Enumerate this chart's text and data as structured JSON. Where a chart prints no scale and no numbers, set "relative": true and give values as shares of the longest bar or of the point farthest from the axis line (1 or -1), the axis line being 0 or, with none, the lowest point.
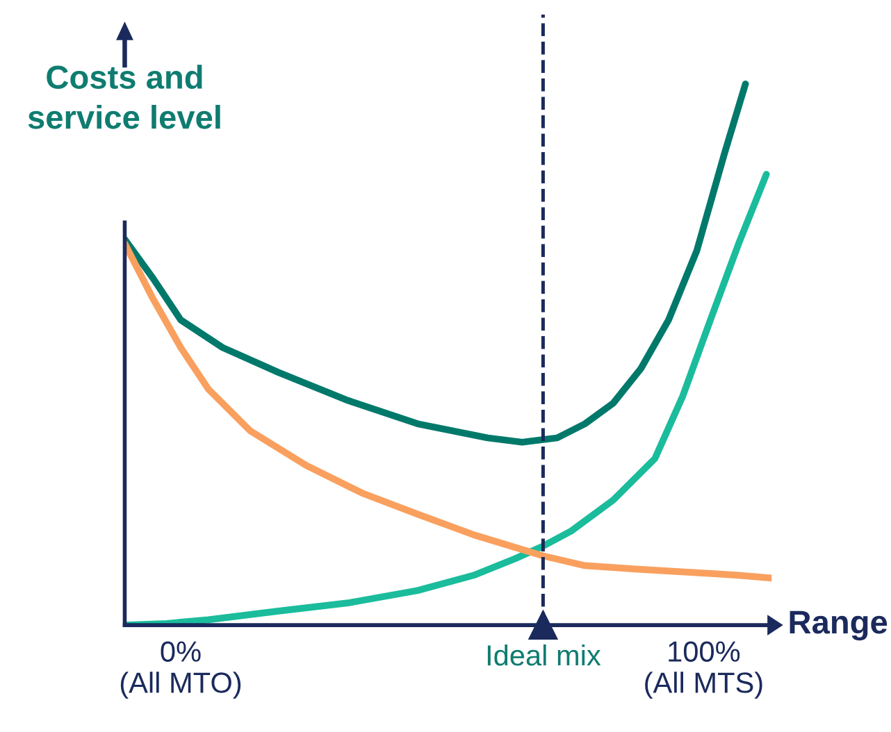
{
  "chart_data": {
    "type": "line",
    "relative": true,
    "xlabel": "Range",
    "ylabel": "Costs and\nservice level",
    "xlim": [
      -10.7,
      113
    ],
    "xticks": [
      {
        "value": 0,
        "label": "0%\n(All MTO)"
      },
      {
        "value": 100,
        "label": "100%\n(All MTS)"
      }
    ],
    "series": [
      {
        "color": "#00796b",
        "x": [
          -10.7,
          -5.3,
          0,
          8,
          18.7,
          32,
          45.3,
          58.7,
          65.3,
          72,
          77.3,
          82.7,
          88,
          93.3,
          98.7,
          104,
          108
        ],
        "values": [
          0.713,
          0.641,
          0.564,
          0.513,
          0.467,
          0.415,
          0.372,
          0.346,
          0.338,
          0.346,
          0.372,
          0.41,
          0.474,
          0.564,
          0.692,
          0.872,
          1
        ]
      },
      {
        "color": "#1abc9c",
        "x": [
          -10.7,
          -2.7,
          5.3,
          18.7,
          32,
          45.3,
          56,
          64,
          69.3,
          74.7,
          82.7,
          90.7,
          96,
          101.3,
          106.7,
          112
        ],
        "values": [
          0,
          0.003,
          0.01,
          0.026,
          0.041,
          0.064,
          0.092,
          0.123,
          0.146,
          0.174,
          0.231,
          0.308,
          0.423,
          0.564,
          0.705,
          0.833
        ]
      },
      {
        "color": "#f9a05f",
        "x": [
          -10.7,
          -5.3,
          0,
          5.3,
          13.3,
          24,
          34.7,
          45.3,
          56,
          69.3,
          77.3,
          88,
          98.7,
          106.7,
          113
        ],
        "values": [
          0.705,
          0.603,
          0.513,
          0.436,
          0.359,
          0.295,
          0.244,
          0.205,
          0.167,
          0.128,
          0.11,
          0.103,
          0.097,
          0.092,
          0.087
        ]
      }
    ],
    "ref_lines": [
      {
        "axis": "x",
        "value": 69.3,
        "label": "Ideal mix",
        "color": "#1b2a5c",
        "line_style": "dashed"
      }
    ],
    "legend": false,
    "grid": false,
    "marker": "none",
    "line_style": "solid"
  }
}
